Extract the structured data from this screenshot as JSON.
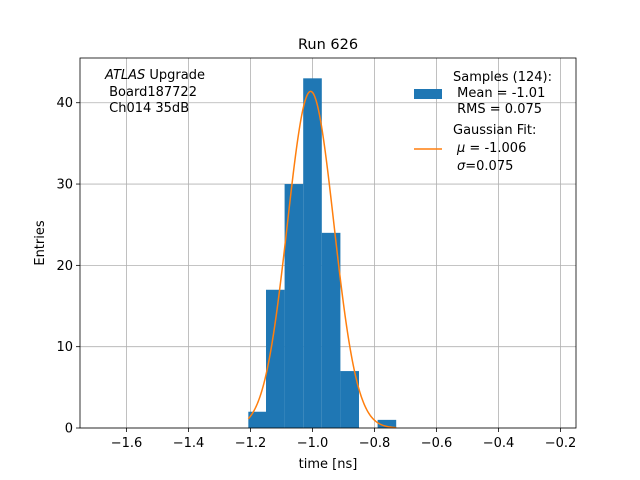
{
  "chart_data": {
    "type": "bar",
    "title": "Run 626",
    "xlabel": "time [ns]",
    "ylabel": "Entries",
    "xlim": [
      -1.75,
      -0.15
    ],
    "ylim": [
      0,
      45.5
    ],
    "xticks": [
      -1.6,
      -1.4,
      -1.2,
      -1.0,
      -0.8,
      -0.6,
      -0.4,
      -0.2
    ],
    "xtick_labels": [
      "−1.6",
      "−1.4",
      "−1.2",
      "−1.0",
      "−0.8",
      "−0.6",
      "−0.4",
      "−0.2"
    ],
    "yticks": [
      0,
      10,
      20,
      30,
      40
    ],
    "yticks_labels": [
      "0",
      "10",
      "20",
      "30",
      "40"
    ],
    "grid": true,
    "legend_position": "top-right",
    "histogram": {
      "bins": [
        {
          "x0": -1.207,
          "x1": -1.15,
          "count": 2
        },
        {
          "x0": -1.15,
          "x1": -1.09,
          "count": 17
        },
        {
          "x0": -1.09,
          "x1": -1.03,
          "count": 30
        },
        {
          "x0": -1.03,
          "x1": -0.97,
          "count": 43
        },
        {
          "x0": -0.97,
          "x1": -0.91,
          "count": 24
        },
        {
          "x0": -0.91,
          "x1": -0.85,
          "count": 7
        },
        {
          "x0": -0.85,
          "x1": -0.79,
          "count": 0
        },
        {
          "x0": -0.79,
          "x1": -0.73,
          "count": 1
        }
      ],
      "color": "#1f77b4"
    },
    "fit": {
      "mu": -1.006,
      "sigma": 0.075,
      "amplitude": 41.4,
      "x_range": [
        -1.207,
        -0.73
      ],
      "color": "#ff7f0e"
    },
    "annotation": {
      "italic": "ATLAS",
      "line1_rest": " Upgrade",
      "line2": " Board187722",
      "line3": " Ch014 35dB"
    },
    "legend": {
      "samples": {
        "line1": "Samples (124):",
        "line2": " Mean = -1.01",
        "line3": " RMS = 0.075"
      },
      "fit": {
        "line1": "Gaussian Fit:",
        "mu_symbol": "μ",
        "mu_text": " = -1.006",
        "sigma_symbol": "σ",
        "sigma_text": "=0.075"
      }
    }
  }
}
